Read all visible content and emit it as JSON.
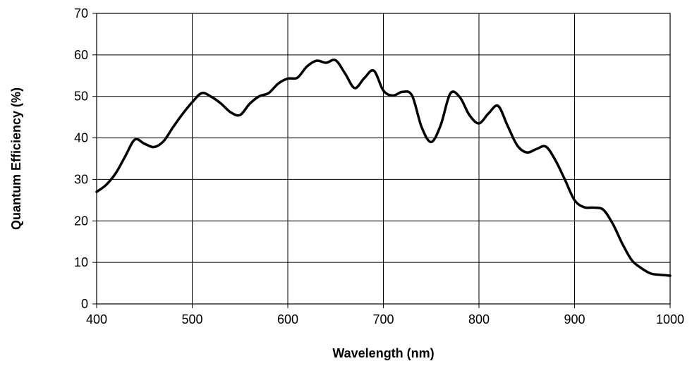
{
  "chart_data": {
    "type": "line",
    "title": "",
    "xlabel": "Wavelength (nm)",
    "ylabel": "Quantum Efficiency (%)",
    "xlim": [
      400,
      1000
    ],
    "ylim": [
      0,
      70
    ],
    "xticks": [
      "400",
      "500",
      "600",
      "700",
      "800",
      "900",
      "1000"
    ],
    "yticks": [
      "0",
      "10",
      "20",
      "30",
      "40",
      "50",
      "60",
      "70"
    ],
    "grid": true,
    "legend": "none",
    "line_color": "#000000",
    "series": [
      {
        "x": [
          400,
          410,
          420,
          430,
          440,
          450,
          460,
          470,
          480,
          490,
          500,
          510,
          520,
          530,
          540,
          550,
          560,
          570,
          580,
          590,
          600,
          610,
          620,
          630,
          640,
          650,
          660,
          670,
          680,
          690,
          700,
          710,
          720,
          730,
          740,
          750,
          760,
          770,
          780,
          790,
          800,
          810,
          820,
          830,
          840,
          850,
          860,
          870,
          880,
          890,
          900,
          910,
          920,
          930,
          940,
          950,
          960,
          970,
          980,
          990,
          1000
        ],
        "y": [
          27,
          28.7,
          31.5,
          35.6,
          39.6,
          38.6,
          37.8,
          39.2,
          42.6,
          45.8,
          48.6,
          50.8,
          49.9,
          48.3,
          46.2,
          45.5,
          48.2,
          50,
          50.8,
          53.1,
          54.3,
          54.5,
          57.2,
          58.6,
          58.1,
          58.7,
          55.5,
          52,
          54.4,
          56.2,
          51.4,
          50.2,
          51.1,
          50.2,
          42.6,
          39,
          43.1,
          50.7,
          49.8,
          45.5,
          43.5,
          45.9,
          47.7,
          42.9,
          38.2,
          36.5,
          37.3,
          37.9,
          34.6,
          29.9,
          25,
          23.3,
          23.2,
          22.7,
          19.3,
          14.5,
          10.5,
          8.6,
          7.3,
          7,
          6.8
        ]
      }
    ]
  }
}
